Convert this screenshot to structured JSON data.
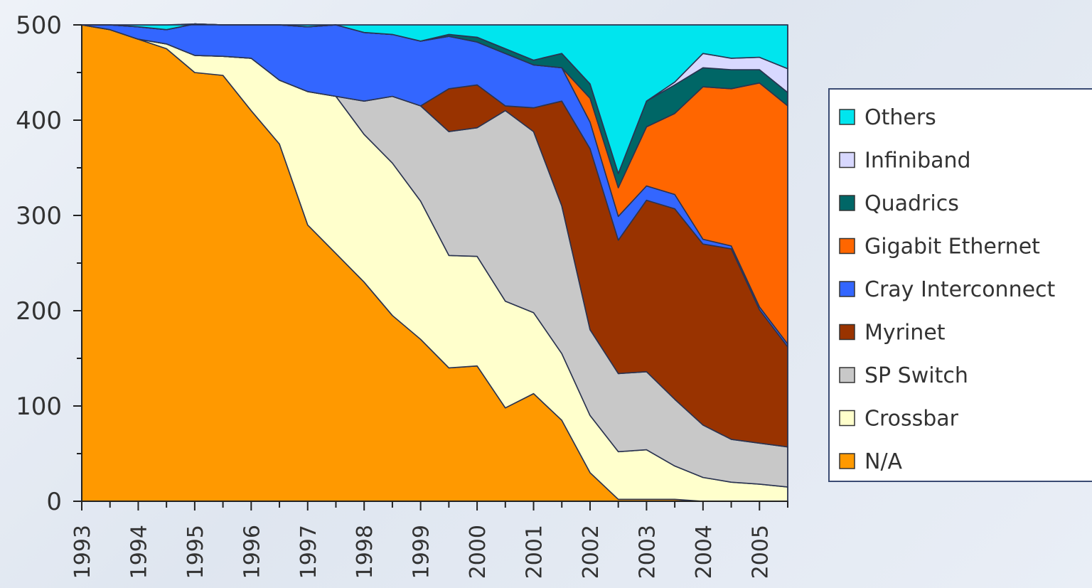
{
  "chart_data": {
    "type": "area",
    "stacked": true,
    "x": [
      1993,
      1993.5,
      1994,
      1994.5,
      1995,
      1995.5,
      1996,
      1996.5,
      1997,
      1997.5,
      1998,
      1998.5,
      1999,
      1999.5,
      2000,
      2000.5,
      2001,
      2001.5,
      2002,
      2002.5,
      2003,
      2003.5,
      2004,
      2004.5,
      2005,
      2005.5
    ],
    "x_tick_labels": [
      "1993",
      "1994",
      "1995",
      "1996",
      "1997",
      "1998",
      "1999",
      "2000",
      "2001",
      "2002",
      "2003",
      "2004",
      "2005"
    ],
    "y_tick_labels": [
      "0",
      "100",
      "200",
      "300",
      "400",
      "500"
    ],
    "ylim": [
      0,
      500
    ],
    "grid": false,
    "legend_position": "right",
    "series": [
      {
        "name": "N/A",
        "color": "#ff9900",
        "values": [
          500,
          495,
          485,
          475,
          450,
          447,
          410,
          375,
          290,
          260,
          230,
          195,
          170,
          140,
          142,
          98,
          113,
          85,
          30,
          2,
          2,
          2,
          0,
          0,
          0,
          0
        ]
      },
      {
        "name": "Crossbar",
        "color": "#ffffcc",
        "values": [
          0,
          0,
          0,
          5,
          18,
          20,
          55,
          67,
          140,
          165,
          155,
          160,
          145,
          118,
          115,
          112,
          85,
          70,
          60,
          50,
          52,
          35,
          25,
          20,
          18,
          15
        ]
      },
      {
        "name": "SP Switch",
        "color": "#c8c8c8",
        "values": [
          0,
          0,
          0,
          0,
          0,
          0,
          0,
          0,
          0,
          0,
          35,
          70,
          100,
          130,
          135,
          200,
          190,
          155,
          90,
          82,
          82,
          70,
          55,
          45,
          43,
          42
        ]
      },
      {
        "name": "Myrinet",
        "color": "#993300",
        "values": [
          0,
          0,
          0,
          0,
          0,
          0,
          0,
          0,
          0,
          0,
          0,
          0,
          0,
          45,
          45,
          5,
          25,
          110,
          190,
          140,
          180,
          200,
          190,
          200,
          140,
          105
        ]
      },
      {
        "name": "Cray Interconnect",
        "color": "#3366ff",
        "values": [
          0,
          5,
          13,
          15,
          33,
          33,
          35,
          58,
          68,
          75,
          72,
          65,
          68,
          55,
          45,
          55,
          45,
          35,
          28,
          25,
          15,
          15,
          5,
          3,
          3,
          3
        ]
      },
      {
        "name": "Gigabit Ethernet",
        "color": "#ff6600",
        "values": [
          0,
          0,
          0,
          0,
          0,
          0,
          0,
          0,
          0,
          0,
          0,
          0,
          0,
          0,
          0,
          0,
          0,
          0,
          25,
          30,
          62,
          85,
          160,
          165,
          235,
          250
        ]
      },
      {
        "name": "Quadrics",
        "color": "#006666",
        "values": [
          0,
          0,
          0,
          0,
          0,
          0,
          0,
          0,
          0,
          0,
          0,
          0,
          0,
          2,
          5,
          5,
          5,
          15,
          15,
          15,
          27,
          30,
          20,
          20,
          14,
          14
        ]
      },
      {
        "name": "Infiniband",
        "color": "#d8d8ff",
        "values": [
          0,
          0,
          0,
          0,
          0,
          0,
          0,
          0,
          0,
          0,
          0,
          0,
          0,
          0,
          0,
          0,
          0,
          0,
          0,
          0,
          0,
          3,
          15,
          12,
          13,
          25
        ]
      },
      {
        "name": "Others",
        "color": "#00e5ee",
        "values": [
          0,
          0,
          2,
          5,
          0,
          0,
          0,
          0,
          2,
          0,
          8,
          10,
          17,
          10,
          13,
          25,
          37,
          30,
          62,
          156,
          80,
          60,
          30,
          35,
          34,
          46
        ]
      }
    ],
    "legend_order": [
      "Others",
      "Infiniband",
      "Quadrics",
      "Gigabit Ethernet",
      "Cray Interconnect",
      "Myrinet",
      "SP Switch",
      "Crossbar",
      "N/A"
    ]
  }
}
